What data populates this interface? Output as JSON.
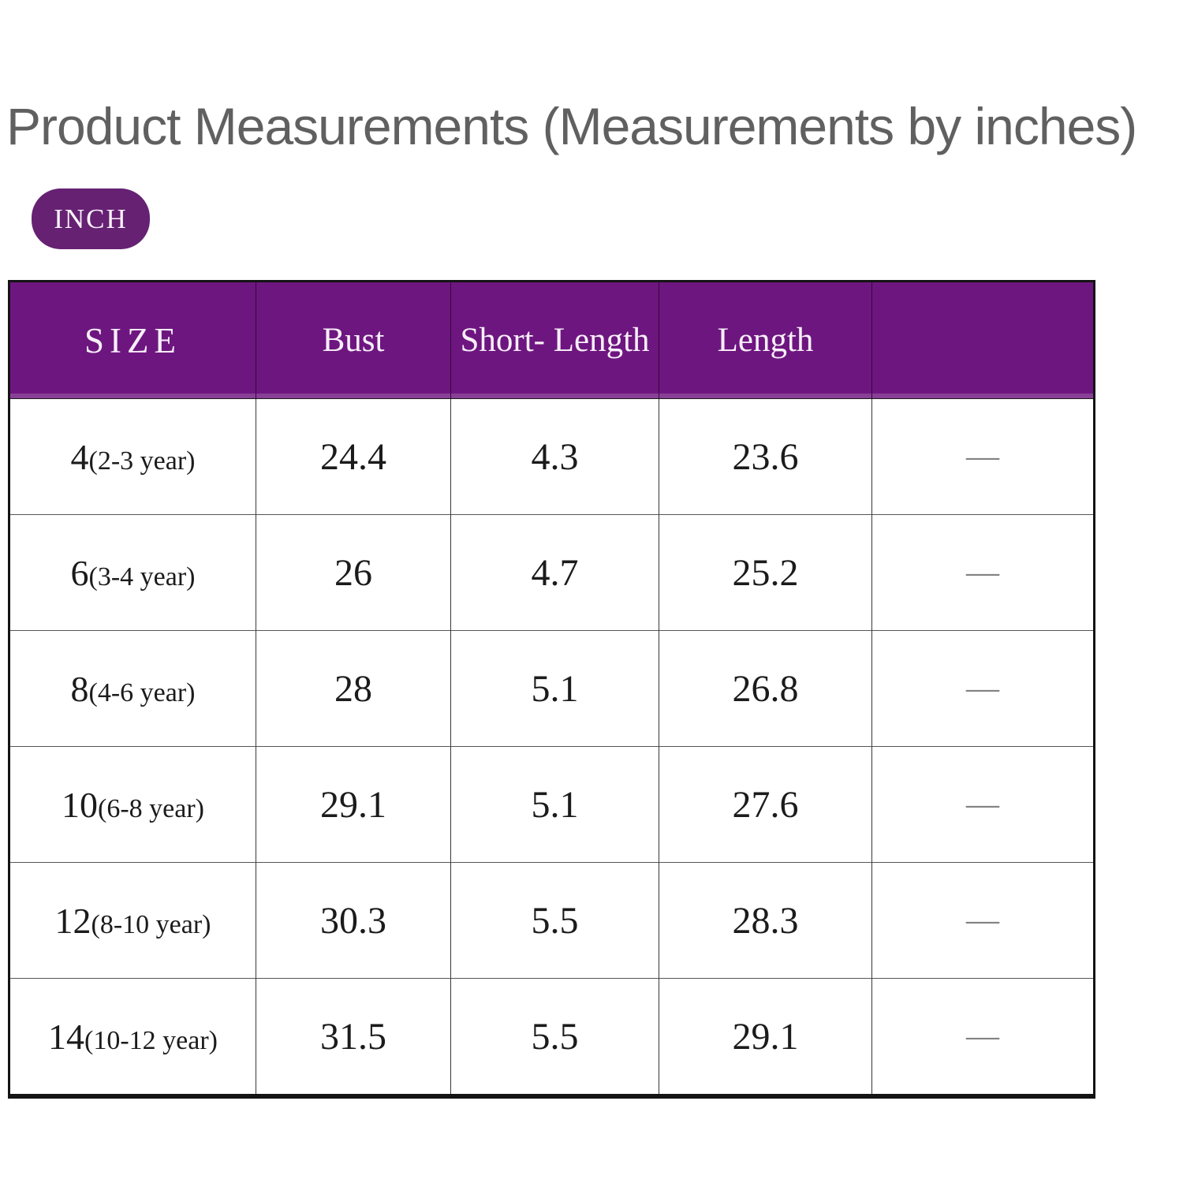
{
  "title": "Product Measurements (Measurements by inches)",
  "unit_badge": {
    "label": "INCH"
  },
  "colors": {
    "header_purple": "#6E1680",
    "badge_purple": "#662173",
    "title_gray": "#606060",
    "dash_gray": "#828282",
    "border_black": "#141414"
  },
  "table": {
    "headers": [
      "SIZE",
      "Bust",
      "Short- Length",
      "Length",
      ""
    ],
    "rows": [
      {
        "size": "4",
        "age": "(2-3 year)",
        "bust": "24.4",
        "short_length": "4.3",
        "length": "23.6",
        "dash": "—"
      },
      {
        "size": "6",
        "age": "(3-4 year)",
        "bust": "26",
        "short_length": "4.7",
        "length": "25.2",
        "dash": "—"
      },
      {
        "size": "8",
        "age": "(4-6 year)",
        "bust": "28",
        "short_length": "5.1",
        "length": "26.8",
        "dash": "—"
      },
      {
        "size": "10",
        "age": "(6-8 year)",
        "bust": "29.1",
        "short_length": "5.1",
        "length": "27.6",
        "dash": "—"
      },
      {
        "size": "12",
        "age": "(8-10 year)",
        "bust": "30.3",
        "short_length": "5.5",
        "length": "28.3",
        "dash": "—"
      },
      {
        "size": "14",
        "age": "(10-12 year)",
        "bust": "31.5",
        "short_length": "5.5",
        "length": "29.1",
        "dash": "—"
      }
    ]
  },
  "chart_data": {
    "type": "table",
    "title": "Product Measurements (Measurements by inches)",
    "unit": "inches",
    "columns": [
      "SIZE",
      "Bust",
      "Short- Length",
      "Length"
    ],
    "rows": [
      [
        "4 (2-3 year)",
        24.4,
        4.3,
        23.6
      ],
      [
        "6 (3-4 year)",
        26,
        4.7,
        25.2
      ],
      [
        "8 (4-6 year)",
        28,
        5.1,
        26.8
      ],
      [
        "10 (6-8 year)",
        29.1,
        5.1,
        27.6
      ],
      [
        "12 (8-10 year)",
        30.3,
        5.5,
        28.3
      ],
      [
        "14 (10-12 year)",
        31.5,
        5.5,
        29.1
      ]
    ]
  }
}
